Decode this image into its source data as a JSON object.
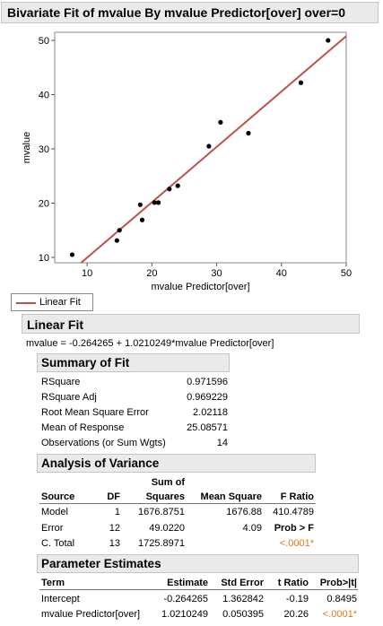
{
  "report": {
    "title": "Bivariate Fit of mvalue By mvalue Predictor[over] over=0"
  },
  "chart_data": {
    "type": "scatter",
    "xlabel": "mvalue Predictor[over]",
    "ylabel": "mvalue",
    "xlim": [
      5,
      50
    ],
    "ylim": [
      9,
      51.5
    ],
    "xticks": [
      10,
      20,
      30,
      40,
      50
    ],
    "yticks": [
      10,
      20,
      30,
      40,
      50
    ],
    "points": [
      [
        7.7,
        10.5
      ],
      [
        14.6,
        13.1
      ],
      [
        15.0,
        15.0
      ],
      [
        18.2,
        19.7
      ],
      [
        18.5,
        16.9
      ],
      [
        20.4,
        20.1
      ],
      [
        21.0,
        20.1
      ],
      [
        22.7,
        22.6
      ],
      [
        24.0,
        23.2
      ],
      [
        28.8,
        30.5
      ],
      [
        30.6,
        34.9
      ],
      [
        34.9,
        32.9
      ],
      [
        43.0,
        42.2
      ],
      [
        47.2,
        50.0
      ]
    ],
    "fit": {
      "intercept": -0.264265,
      "slope": 1.0210249,
      "color": "#c0504d"
    },
    "point_color": "#000000"
  },
  "legend": {
    "label": "Linear Fit",
    "line_color": "#c0504d"
  },
  "linear_fit": {
    "title": "Linear Fit",
    "equation": "mvalue = -0.264265 + 1.0210249*mvalue Predictor[over]"
  },
  "summary_of_fit": {
    "title": "Summary of Fit",
    "rows": [
      {
        "label": "RSquare",
        "value": "0.971596"
      },
      {
        "label": "RSquare Adj",
        "value": "0.969229"
      },
      {
        "label": "Root Mean Square Error",
        "value": "2.02118"
      },
      {
        "label": "Mean of Response",
        "value": "25.08571"
      },
      {
        "label": "Observations (or Sum Wgts)",
        "value": "14"
      }
    ]
  },
  "anova": {
    "title": "Analysis of Variance",
    "headers": {
      "source": "Source",
      "df": "DF",
      "ss_top": "Sum of",
      "ss": "Squares",
      "ms": "Mean Square",
      "f": "F Ratio"
    },
    "rows": [
      {
        "source": "Model",
        "df": "1",
        "ss": "1676.8751",
        "ms": "1676.88",
        "f": "410.4789"
      },
      {
        "source": "Error",
        "df": "12",
        "ss": "49.0220",
        "ms": "4.09",
        "f": "Prob > F"
      },
      {
        "source": "C. Total",
        "df": "13",
        "ss": "1725.8971",
        "ms": "",
        "f": "<.0001*"
      }
    ]
  },
  "parameter_estimates": {
    "title": "Parameter Estimates",
    "headers": {
      "term": "Term",
      "estimate": "Estimate",
      "stderr": "Std Error",
      "t": "t Ratio",
      "p": "Prob>|t|"
    },
    "rows": [
      {
        "term": "Intercept",
        "estimate": "-0.264265",
        "stderr": "1.362842",
        "t": "-0.19",
        "p": "0.8495"
      },
      {
        "term": "mvalue Predictor[over]",
        "estimate": "1.0210249",
        "stderr": "0.050395",
        "t": "20.26",
        "p": "<.0001*"
      }
    ]
  }
}
